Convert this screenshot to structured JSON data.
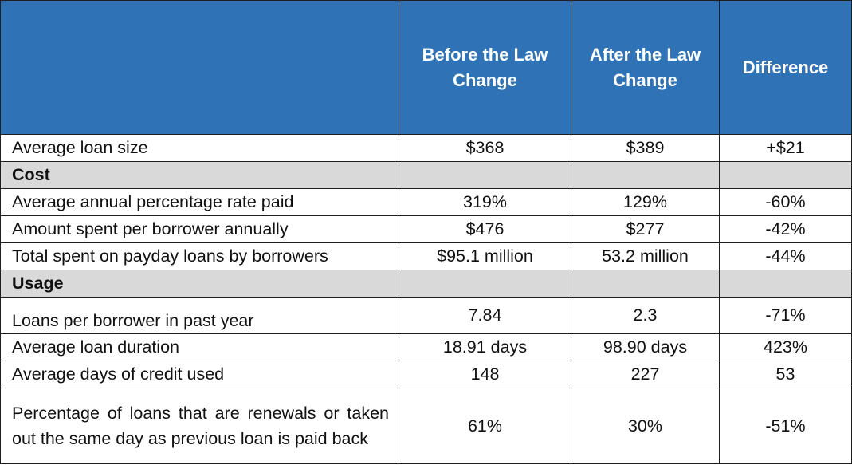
{
  "table": {
    "headers": [
      "",
      "Before the Law Change",
      "After the Law Change",
      "Difference"
    ],
    "rows": [
      {
        "type": "data",
        "label": "Average loan size",
        "before": "$368",
        "after": "$389",
        "difference": "+$21"
      },
      {
        "type": "section",
        "label": "Cost"
      },
      {
        "type": "data",
        "label": "Average annual percentage rate paid",
        "before": "319%",
        "after": "129%",
        "difference": "-60%"
      },
      {
        "type": "data",
        "label": "Amount spent per borrower annually",
        "before": "$476",
        "after": "$277",
        "difference": "-42%"
      },
      {
        "type": "data",
        "label": "Total spent on payday loans by borrowers",
        "before": "$95.1 million",
        "after": "53.2 million",
        "difference": "-44%"
      },
      {
        "type": "section",
        "label": "Usage"
      },
      {
        "type": "data",
        "label": "Loans per borrower in past year",
        "before": "7.84",
        "after": "2.3",
        "difference": "-71%"
      },
      {
        "type": "data",
        "label": "Average loan duration",
        "before": "18.91 days",
        "after": "98.90 days",
        "difference": "423%"
      },
      {
        "type": "data",
        "label": "Average days of credit used",
        "before": "148",
        "after": "227",
        "difference": "53"
      },
      {
        "type": "data",
        "label": "Percentage of loans that are renewals or taken out the same day as previous loan is paid back",
        "before": "61%",
        "after": "30%",
        "difference": "-51%"
      }
    ]
  },
  "colors": {
    "header_bg": "#2f72b5",
    "header_text": "#ffffff",
    "section_bg": "#d9d9d9",
    "border": "#1f1f1f"
  }
}
